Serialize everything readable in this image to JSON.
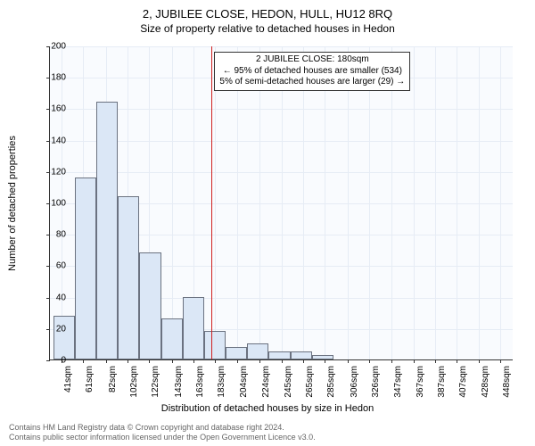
{
  "title_line1": "2, JUBILEE CLOSE, HEDON, HULL, HU12 8RQ",
  "title_line2": "Size of property relative to detached houses in Hedon",
  "ylabel": "Number of detached properties",
  "xlabel": "Distribution of detached houses by size in Hedon",
  "footer_line1": "Contains HM Land Registry data © Crown copyright and database right 2024.",
  "footer_line2": "Contains public sector information licensed under the Open Government Licence v3.0.",
  "annotation": {
    "line1": "2 JUBILEE CLOSE: 180sqm",
    "line2": "← 95% of detached houses are smaller (534)",
    "line3": "5% of semi-detached houses are larger (29) →"
  },
  "chart": {
    "type": "histogram",
    "background_color": "#f9fbfe",
    "grid_color": "#e6ecf5",
    "bar_fill": "#dbe7f6",
    "bar_border": "#6b7280",
    "refline_color": "#d02020",
    "refline_x": 180,
    "xlim": [
      30,
      460
    ],
    "ylim": [
      0,
      200
    ],
    "yticks": [
      0,
      20,
      40,
      60,
      80,
      100,
      120,
      140,
      160,
      180,
      200
    ],
    "xticks": [
      41,
      61,
      82,
      102,
      122,
      143,
      163,
      183,
      204,
      224,
      245,
      265,
      285,
      306,
      326,
      347,
      367,
      387,
      407,
      428,
      448
    ],
    "xtick_labels": [
      "41sqm",
      "61sqm",
      "82sqm",
      "102sqm",
      "122sqm",
      "143sqm",
      "163sqm",
      "183sqm",
      "204sqm",
      "224sqm",
      "245sqm",
      "265sqm",
      "285sqm",
      "306sqm",
      "326sqm",
      "347sqm",
      "367sqm",
      "387sqm",
      "407sqm",
      "428sqm",
      "448sqm"
    ],
    "bars": [
      {
        "x0": 33,
        "x1": 53,
        "y": 28
      },
      {
        "x0": 53,
        "x1": 73,
        "y": 116
      },
      {
        "x0": 73,
        "x1": 93,
        "y": 164
      },
      {
        "x0": 93,
        "x1": 113,
        "y": 104
      },
      {
        "x0": 113,
        "x1": 133,
        "y": 68
      },
      {
        "x0": 133,
        "x1": 153,
        "y": 26
      },
      {
        "x0": 153,
        "x1": 173,
        "y": 40
      },
      {
        "x0": 173,
        "x1": 193,
        "y": 18
      },
      {
        "x0": 193,
        "x1": 213,
        "y": 8
      },
      {
        "x0": 213,
        "x1": 233,
        "y": 10
      },
      {
        "x0": 233,
        "x1": 253,
        "y": 5
      },
      {
        "x0": 253,
        "x1": 273,
        "y": 5
      },
      {
        "x0": 273,
        "x1": 293,
        "y": 3
      }
    ],
    "axis_label_fontsize": 11,
    "tick_fontsize": 10
  }
}
